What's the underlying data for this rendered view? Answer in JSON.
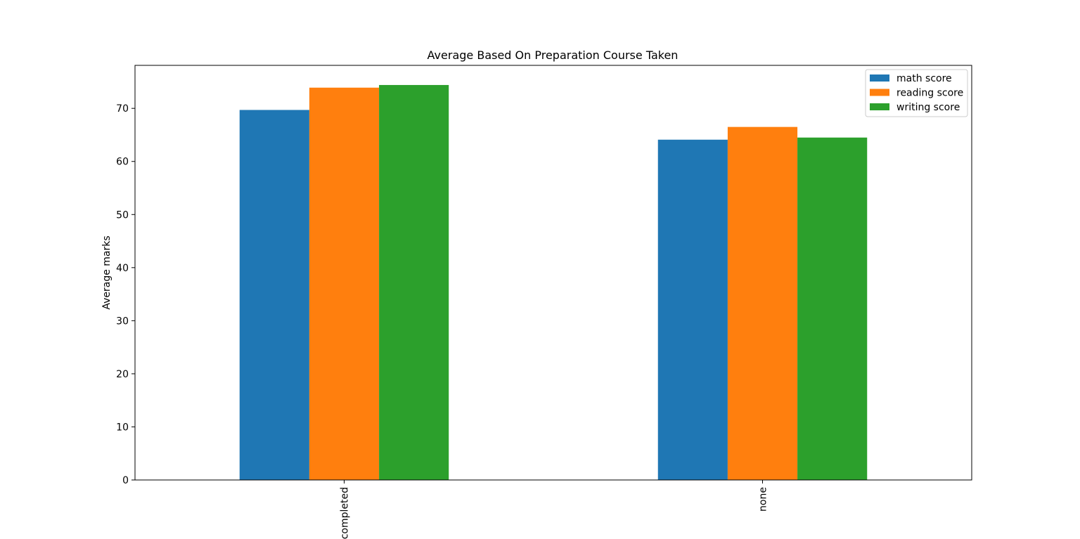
{
  "chart_data": {
    "type": "bar",
    "title": "Average Based On Preparation Course Taken",
    "xlabel": "",
    "ylabel": "Average marks",
    "categories": [
      "completed",
      "none"
    ],
    "series": [
      {
        "name": "math score",
        "color": "#1f77b4",
        "values": [
          69.7,
          64.1
        ]
      },
      {
        "name": "reading score",
        "color": "#ff7f0e",
        "values": [
          73.9,
          66.5
        ]
      },
      {
        "name": "writing score",
        "color": "#2ca02c",
        "values": [
          74.4,
          64.5
        ]
      }
    ],
    "ylim": [
      0,
      78.1
    ],
    "yticks": [
      0,
      10,
      20,
      30,
      40,
      50,
      60,
      70
    ],
    "legend_position": "top-right",
    "grid": false
  }
}
